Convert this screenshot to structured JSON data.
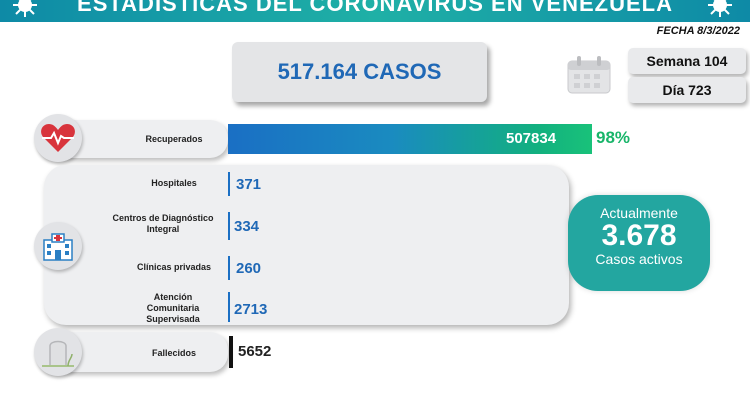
{
  "header": {
    "title": "ESTADÍSTICAS DEL CORONAVIRUS EN VENEZUELA"
  },
  "date": "FECHA 8/3/2022",
  "total_cases": "517.164 CASOS",
  "week": "Semana 104",
  "day": "Día 723",
  "recovered": {
    "label": "Recuperados",
    "value": "507834",
    "percent": "98%",
    "icon": "heart-pulse-icon"
  },
  "facilities": [
    {
      "label": "Hospitales",
      "value": "371"
    },
    {
      "label": "Centros de Diagnóstico Integral",
      "value": "334"
    },
    {
      "label": "Clínicas privadas",
      "value": "260"
    },
    {
      "label": "Atención Comunitaria Supervisada",
      "value": "2713"
    }
  ],
  "facilities_icon": "hospital-icon",
  "active": {
    "line1": "Actualmente",
    "value": "3.678",
    "line3": "Casos activos"
  },
  "deaths": {
    "label": "Fallecidos",
    "value": "5652",
    "icon": "tombstone-icon"
  },
  "colors": {
    "accent_blue": "#1f68b6",
    "accent_teal": "#23a6a0",
    "green": "#19b56a"
  }
}
